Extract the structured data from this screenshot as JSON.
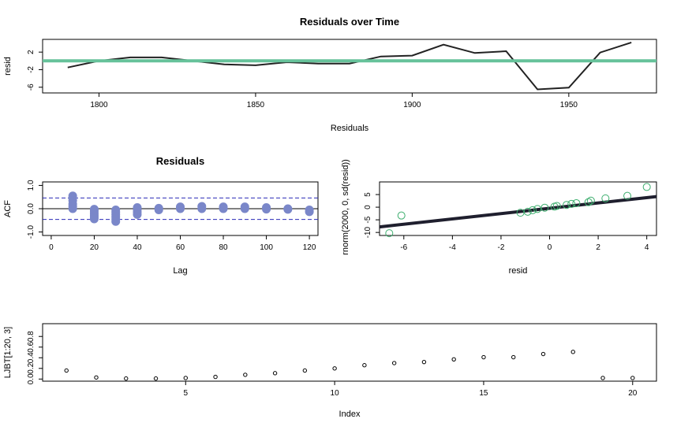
{
  "chart_data": [
    {
      "type": "line",
      "title": "Residuals over Time",
      "xlabel": "Residuals",
      "ylabel": "resid",
      "xlim": [
        1782,
        1978
      ],
      "ylim": [
        -7.3,
        4.9
      ],
      "x_ticks": [
        "1800",
        "1850",
        "1900",
        "1950"
      ],
      "y_ticks": [
        "2",
        "-2",
        "-6"
      ],
      "series": [
        {
          "x": [
            1790,
            1800,
            1810,
            1820,
            1830,
            1840,
            1850,
            1860,
            1870,
            1880,
            1890,
            1900,
            1910,
            1920,
            1930,
            1940,
            1950,
            1960,
            1970
          ],
          "values": [
            -1.5,
            0.0,
            0.8,
            0.8,
            0.0,
            -0.8,
            -1.0,
            -0.3,
            -0.6,
            -0.6,
            1.0,
            1.2,
            3.7,
            1.8,
            2.2,
            -6.5,
            -6.1,
            1.9,
            4.2
          ]
        }
      ],
      "reference_line": {
        "y": 0,
        "color": "#66c29a"
      },
      "line_color": "#222222"
    },
    {
      "type": "bar",
      "title": "Residuals",
      "xlabel": "Lag",
      "ylabel": "ACF",
      "xlim": [
        -4,
        124
      ],
      "ylim": [
        -1.15,
        1.15
      ],
      "x_ticks": [
        "0",
        "20",
        "40",
        "60",
        "80",
        "100",
        "120"
      ],
      "y_ticks": [
        "-1.0",
        "0.0",
        "1.0"
      ],
      "confidence_bounds": [
        0.46,
        -0.46
      ],
      "point_color": "#7a87c9",
      "points": [
        {
          "x": 10,
          "values": [
            0.55,
            0.45,
            0.35,
            0.2,
            0.1,
            0.0
          ]
        },
        {
          "x": 20,
          "values": [
            -0.02,
            -0.1,
            -0.2,
            -0.28,
            -0.36,
            -0.44
          ]
        },
        {
          "x": 30,
          "values": [
            -0.05,
            -0.15,
            -0.25,
            -0.35,
            -0.45,
            -0.55
          ]
        },
        {
          "x": 40,
          "values": [
            0.05,
            -0.05,
            -0.15,
            -0.25
          ]
        },
        {
          "x": 50,
          "values": [
            0.02,
            -0.05
          ]
        },
        {
          "x": 60,
          "values": [
            0.08,
            0.0
          ]
        },
        {
          "x": 70,
          "values": [
            0.1,
            0.0
          ]
        },
        {
          "x": 80,
          "values": [
            0.08,
            0.0
          ]
        },
        {
          "x": 90,
          "values": [
            0.08,
            0.0
          ]
        },
        {
          "x": 100,
          "values": [
            0.05,
            -0.02
          ]
        },
        {
          "x": 110,
          "values": [
            0.0,
            -0.03
          ]
        },
        {
          "x": 120,
          "values": [
            -0.05,
            -0.13
          ]
        }
      ]
    },
    {
      "type": "scatter",
      "title": "",
      "xlabel": "resid",
      "ylabel": "rnorm(2000, 0, sd(resid))",
      "xlim": [
        -7.0,
        4.4
      ],
      "ylim": [
        -11.2,
        10.0
      ],
      "x_ticks": [
        "-6",
        "-4",
        "-2",
        "0",
        "2",
        "4"
      ],
      "y_ticks": [
        "5",
        "0",
        "-5",
        "-10"
      ],
      "point_color": "#3dae6e",
      "points": [
        {
          "x": -6.6,
          "y": -10.3
        },
        {
          "x": -6.1,
          "y": -3.3
        },
        {
          "x": -1.2,
          "y": -2.2
        },
        {
          "x": -0.9,
          "y": -1.8
        },
        {
          "x": -0.7,
          "y": -1.2
        },
        {
          "x": -0.5,
          "y": -0.7
        },
        {
          "x": -0.2,
          "y": -0.2
        },
        {
          "x": 0.2,
          "y": 0.2
        },
        {
          "x": 0.3,
          "y": 0.5
        },
        {
          "x": 0.7,
          "y": 0.9
        },
        {
          "x": 0.9,
          "y": 1.3
        },
        {
          "x": 1.1,
          "y": 1.6
        },
        {
          "x": 1.6,
          "y": 2.0
        },
        {
          "x": 1.7,
          "y": 2.6
        },
        {
          "x": 2.3,
          "y": 3.5
        },
        {
          "x": 3.2,
          "y": 4.5
        },
        {
          "x": 4.0,
          "y": 8.0
        }
      ],
      "fit_line": {
        "x": [
          -7.0,
          4.4
        ],
        "y": [
          -7.8,
          4.2
        ],
        "color": "#1f1f2e"
      }
    },
    {
      "type": "scatter",
      "title": "",
      "xlabel": "Index",
      "ylabel": "LJBT[1:20, 3]",
      "xlim": [
        0.2,
        20.8
      ],
      "ylim": [
        -0.04,
        1.04
      ],
      "x_ticks": [
        "5",
        "10",
        "15",
        "20"
      ],
      "y_ticks": [
        "0.0",
        "0.2",
        "0.4",
        "0.6",
        "0.8"
      ],
      "x": [
        1,
        2,
        3,
        4,
        5,
        6,
        7,
        8,
        9,
        10,
        11,
        12,
        13,
        14,
        15,
        16,
        17,
        18,
        19,
        20
      ],
      "values": [
        0.16,
        0.03,
        0.01,
        0.01,
        0.02,
        0.04,
        0.08,
        0.11,
        0.16,
        0.2,
        0.26,
        0.3,
        0.32,
        0.37,
        0.41,
        0.41,
        0.47,
        0.51,
        0.02,
        0.02
      ]
    }
  ]
}
